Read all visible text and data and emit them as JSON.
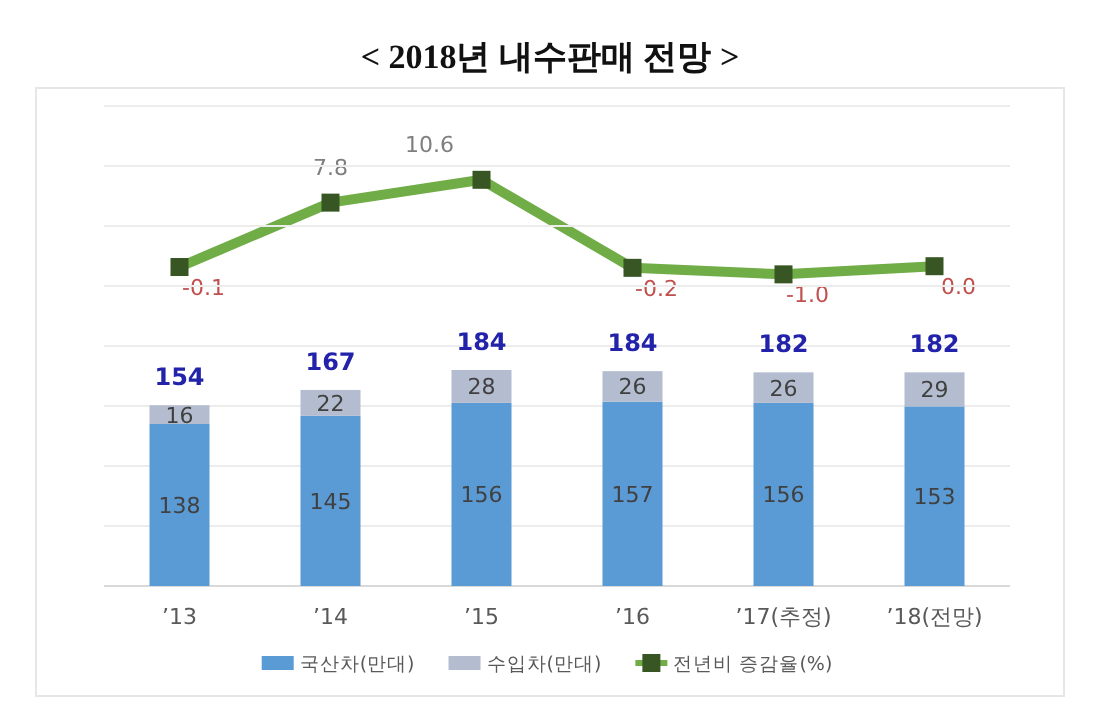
{
  "chart_data": [
    {
      "type": "line",
      "title": "< 2018년 내수판매 전망 >",
      "categories": [
        null,
        null,
        null,
        null,
        null,
        null
      ],
      "legend": "bottom",
      "marker": "square",
      "line_style": "solid",
      "series": [
        {
          "name": "전년비 증감율(%)",
          "color": "#70ad47",
          "values": [
            -0.1,
            7.8,
            10.6,
            -0.2,
            -1.0,
            0.0
          ],
          "value_labels": [
            "-0.1",
            "7.8",
            "10.6",
            "-0.2",
            "-1.0",
            "0.0"
          ]
        }
      ]
    },
    {
      "type": "bar",
      "categories": [
        "’13",
        "’14",
        "’15",
        "’16",
        "’17(추정)",
        "’18(전망)"
      ],
      "stacked": true,
      "data_labels": true,
      "grid": "y",
      "legend": "bottom",
      "totals": [
        "154",
        "167",
        "184",
        "184",
        "182",
        "182"
      ],
      "series": [
        {
          "name": "국산차(만대)",
          "color": "#5b9bd5",
          "values": [
            138,
            145,
            156,
            157,
            156,
            153
          ]
        },
        {
          "name": "수입차(만대)",
          "color": "#b4bccf",
          "values": [
            16,
            22,
            28,
            26,
            26,
            29
          ]
        }
      ]
    }
  ]
}
